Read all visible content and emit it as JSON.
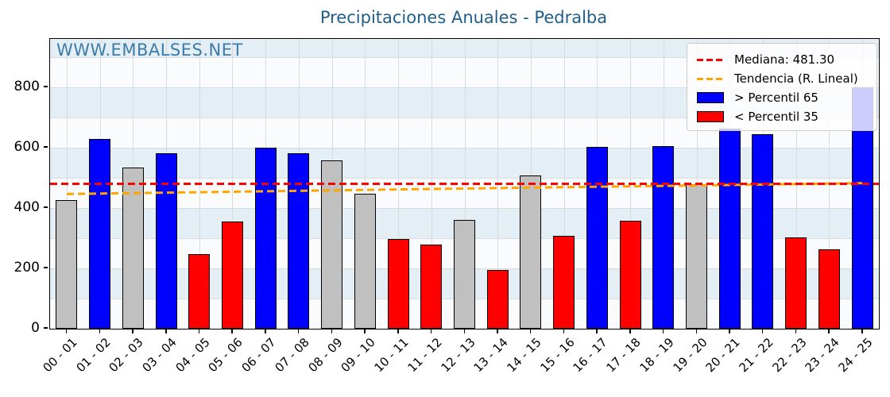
{
  "title": "Precipitaciones Anuales - Pedralba",
  "watermark": "WWW.EMBALSES.NET",
  "legend": [
    {
      "swatch": "dash-red",
      "label": "Mediana: 481.30"
    },
    {
      "swatch": "dash-orange",
      "label": "Tendencia (R. Lineal)"
    },
    {
      "swatch": "patch-blue",
      "label": "> Percentil 65"
    },
    {
      "swatch": "patch-red",
      "label": "< Percentil 35"
    }
  ],
  "chart_data": {
    "type": "bar",
    "title": "Precipitaciones Anuales - Pedralba",
    "xlabel": "",
    "ylabel": "",
    "ylim": [
      0,
      960
    ],
    "yticks": [
      "0",
      "200",
      "400",
      "600",
      "800"
    ],
    "ytick_values": [
      0,
      200,
      400,
      600,
      800
    ],
    "grid": true,
    "legend_position": "upper right",
    "categories": [
      "00 - 01",
      "01 - 02",
      "02 - 03",
      "03 - 04",
      "04 - 05",
      "05 - 06",
      "06 - 07",
      "07 - 08",
      "08 - 09",
      "09 - 10",
      "10 - 11",
      "11 - 12",
      "12 - 13",
      "13 - 14",
      "14 - 15",
      "15 - 16",
      "16 - 17",
      "17 - 18",
      "18 - 19",
      "19 - 20",
      "20 - 21",
      "21 - 22",
      "22 - 23",
      "23 - 24",
      "24 - 25"
    ],
    "values": [
      425,
      628,
      535,
      582,
      247,
      355,
      600,
      582,
      558,
      448,
      298,
      280,
      360,
      195,
      507,
      308,
      602,
      357,
      605,
      480,
      663,
      645,
      303,
      264,
      800
    ],
    "groups": [
      "mid",
      "p65",
      "mid",
      "p65",
      "p35",
      "p35",
      "p65",
      "p65",
      "mid",
      "mid",
      "p35",
      "p35",
      "mid",
      "p35",
      "mid",
      "p35",
      "p65",
      "p35",
      "p65",
      "mid",
      "p65",
      "p65",
      "p35",
      "p35",
      "p65"
    ],
    "median": 481.3,
    "trend_linear": {
      "start_value": 446,
      "end_value": 482
    },
    "colors": {
      "p65": "#0000ff",
      "p35": "#ff0000",
      "mid": "#c0c0c0",
      "median_line": "#ff0000",
      "trend_line": "#ffa500",
      "title": "#1f5f8b",
      "watermark": "#3d7ca8",
      "stripe_blue": "#e4eef5",
      "stripe_white": "#fafbfc"
    }
  }
}
